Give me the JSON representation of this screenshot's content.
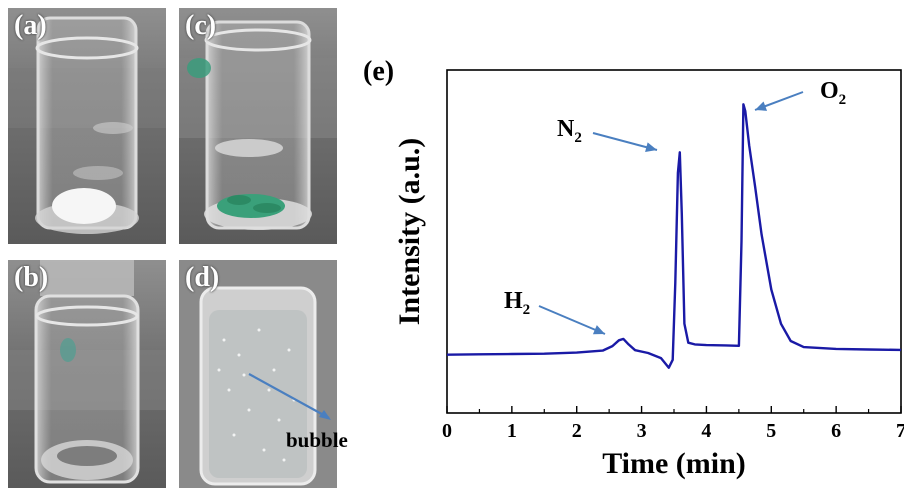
{
  "panels": {
    "a": {
      "label": "(a)"
    },
    "b": {
      "label": "(b)"
    },
    "c": {
      "label": "(c)"
    },
    "d": {
      "label": "(d)",
      "annotation": "bubble"
    },
    "e": {
      "label": "(e)"
    }
  },
  "colors": {
    "line": "#1a1aa6",
    "arrow": "#4a7fc0",
    "powder_a": "#f6f6f6",
    "powder_c": "#3aa07a"
  },
  "chart_data": {
    "type": "line",
    "title": "",
    "xlabel": "Time (min)",
    "ylabel": "Intensity (a.u.)",
    "xlim": [
      0,
      7
    ],
    "ylim": [
      0,
      100
    ],
    "x_ticks": [
      "0",
      "1",
      "2",
      "3",
      "4",
      "5",
      "6",
      "7"
    ],
    "y_ticks_labeled": false,
    "grid": false,
    "series": [
      {
        "name": "",
        "x": [
          0,
          0.5,
          1.0,
          1.5,
          2.0,
          2.4,
          2.55,
          2.65,
          2.72,
          2.8,
          2.9,
          3.1,
          3.3,
          3.42,
          3.48,
          3.52,
          3.56,
          3.59,
          3.62,
          3.66,
          3.72,
          3.82,
          4.0,
          4.3,
          4.5,
          4.54,
          4.57,
          4.6,
          4.66,
          4.75,
          4.85,
          5.0,
          5.15,
          5.3,
          5.5,
          6.0,
          6.5,
          7.0
        ],
        "y": [
          17,
          17.1,
          17.2,
          17.3,
          17.6,
          18.2,
          19.5,
          21.2,
          21.6,
          20.0,
          18.3,
          17.5,
          16.0,
          13.2,
          15.5,
          38,
          70,
          76,
          58,
          26,
          20.5,
          20.0,
          19.8,
          19.7,
          19.6,
          50,
          90,
          88,
          78,
          66,
          52,
          36,
          26,
          21,
          19.2,
          18.7,
          18.5,
          18.4
        ]
      }
    ],
    "annotations": [
      {
        "text": "H",
        "sub": "2",
        "points_to_x": 2.72
      },
      {
        "text": "N",
        "sub": "2",
        "points_to_x": 3.59
      },
      {
        "text": "O",
        "sub": "2",
        "points_to_x": 4.57
      }
    ]
  }
}
